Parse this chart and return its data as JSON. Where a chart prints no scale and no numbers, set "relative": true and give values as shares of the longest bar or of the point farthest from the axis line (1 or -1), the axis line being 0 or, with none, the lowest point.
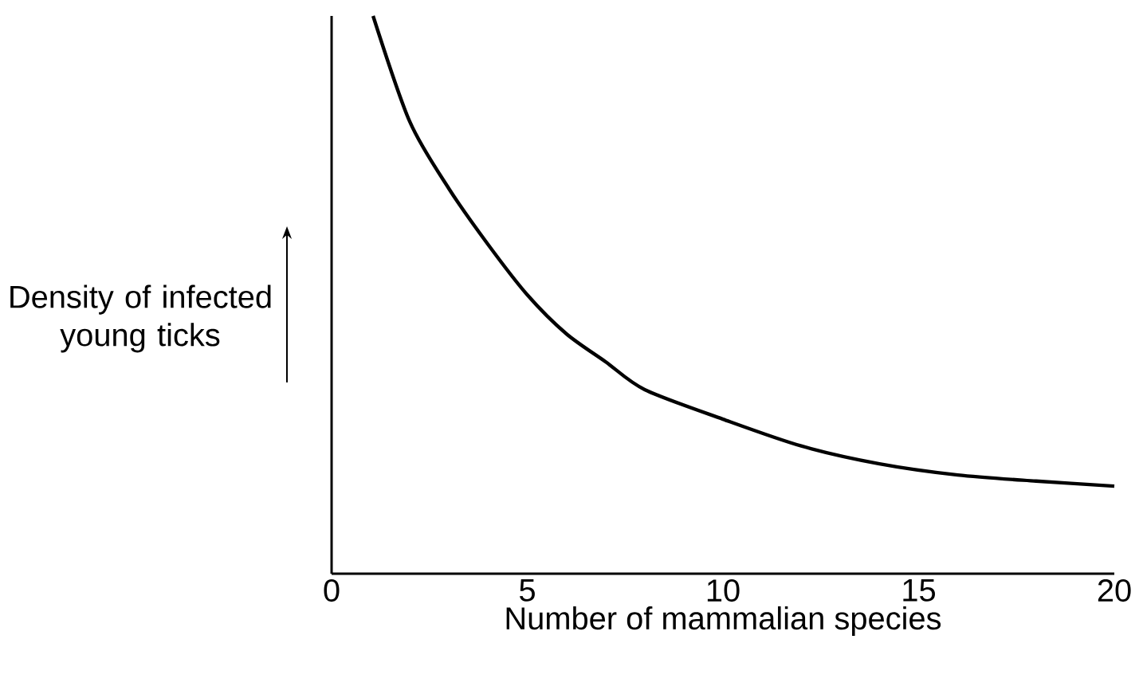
{
  "chart_data": {
    "type": "line",
    "relative": true,
    "xlabel": "Number of mammalian species",
    "ylabel": "Density of infected young ticks",
    "x": [
      1.06,
      2,
      3,
      4,
      5,
      6,
      7,
      8,
      10,
      12,
      14,
      16,
      18,
      20
    ],
    "values": [
      1.0,
      0.81,
      0.69,
      0.59,
      0.5,
      0.43,
      0.38,
      0.33,
      0.277,
      0.229,
      0.197,
      0.177,
      0.166,
      0.157
    ],
    "color": "#000000",
    "xlim": [
      0,
      20
    ],
    "xticks": [
      0,
      5,
      10,
      15,
      20
    ],
    "grid": false,
    "marker": "none",
    "line_style": "solid"
  }
}
